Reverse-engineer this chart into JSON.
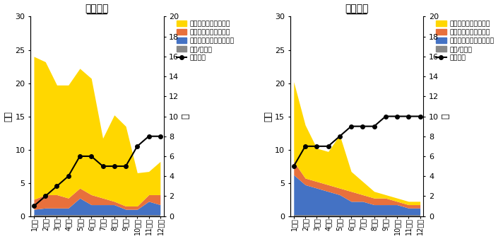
{
  "months": [
    "1か月",
    "2か月",
    "3か月",
    "4か月",
    "5か月",
    "6か月",
    "7か月",
    "8か月",
    "9か月",
    "10か月",
    "11か月",
    "12か月"
  ],
  "low": {
    "title": "低再現群",
    "group": [
      21.5,
      20.0,
      16.5,
      17.0,
      18.0,
      17.5,
      9.0,
      13.0,
      12.0,
      5.0,
      3.5,
      5.0
    ],
    "individual": [
      1.5,
      2.0,
      2.0,
      1.5,
      1.5,
      1.5,
      1.0,
      0.5,
      0.5,
      0.5,
      1.0,
      1.5
    ],
    "outside": [
      0.8,
      1.0,
      1.0,
      1.0,
      2.5,
      1.5,
      1.5,
      1.5,
      0.8,
      0.8,
      2.0,
      1.5
    ],
    "phone": [
      0.2,
      0.2,
      0.2,
      0.2,
      0.2,
      0.2,
      0.2,
      0.2,
      0.2,
      0.2,
      0.2,
      0.2
    ],
    "workers": [
      1,
      2,
      3,
      4,
      6,
      6,
      5,
      5,
      5,
      7,
      8,
      8
    ]
  },
  "high": {
    "title": "高再現群",
    "group": [
      12.0,
      8.0,
      5.0,
      5.0,
      8.0,
      3.0,
      2.0,
      1.0,
      0.5,
      0.5,
      0.5,
      0.5
    ],
    "individual": [
      2.0,
      1.0,
      1.0,
      1.0,
      1.0,
      1.5,
      1.0,
      1.0,
      1.0,
      0.5,
      0.5,
      0.5
    ],
    "outside": [
      6.0,
      4.5,
      4.0,
      3.5,
      3.0,
      2.0,
      2.0,
      1.5,
      1.5,
      1.5,
      1.0,
      1.0
    ],
    "phone": [
      0.2,
      0.2,
      0.2,
      0.2,
      0.2,
      0.2,
      0.2,
      0.2,
      0.2,
      0.2,
      0.2,
      0.2
    ],
    "workers": [
      5,
      7,
      7,
      7,
      8,
      9,
      9,
      9,
      10,
      10,
      10,
      10
    ]
  },
  "c_group": "#FFD700",
  "c_indiv": "#E8703C",
  "c_outside": "#4472C4",
  "c_phone": "#888888",
  "c_line": "#000000",
  "legend_labels": [
    "事業所内集団サービス",
    "事業所内個別サービス",
    "事業所外の個別サービス",
    "電話/メール",
    "就労者数"
  ],
  "ylabel_left": "時間",
  "ylabel_right": "人",
  "yticks_left": [
    0,
    5,
    10,
    15,
    20,
    25,
    30
  ],
  "yticks_right": [
    0,
    2,
    4,
    6,
    8,
    10,
    12,
    14,
    16,
    18,
    20
  ]
}
